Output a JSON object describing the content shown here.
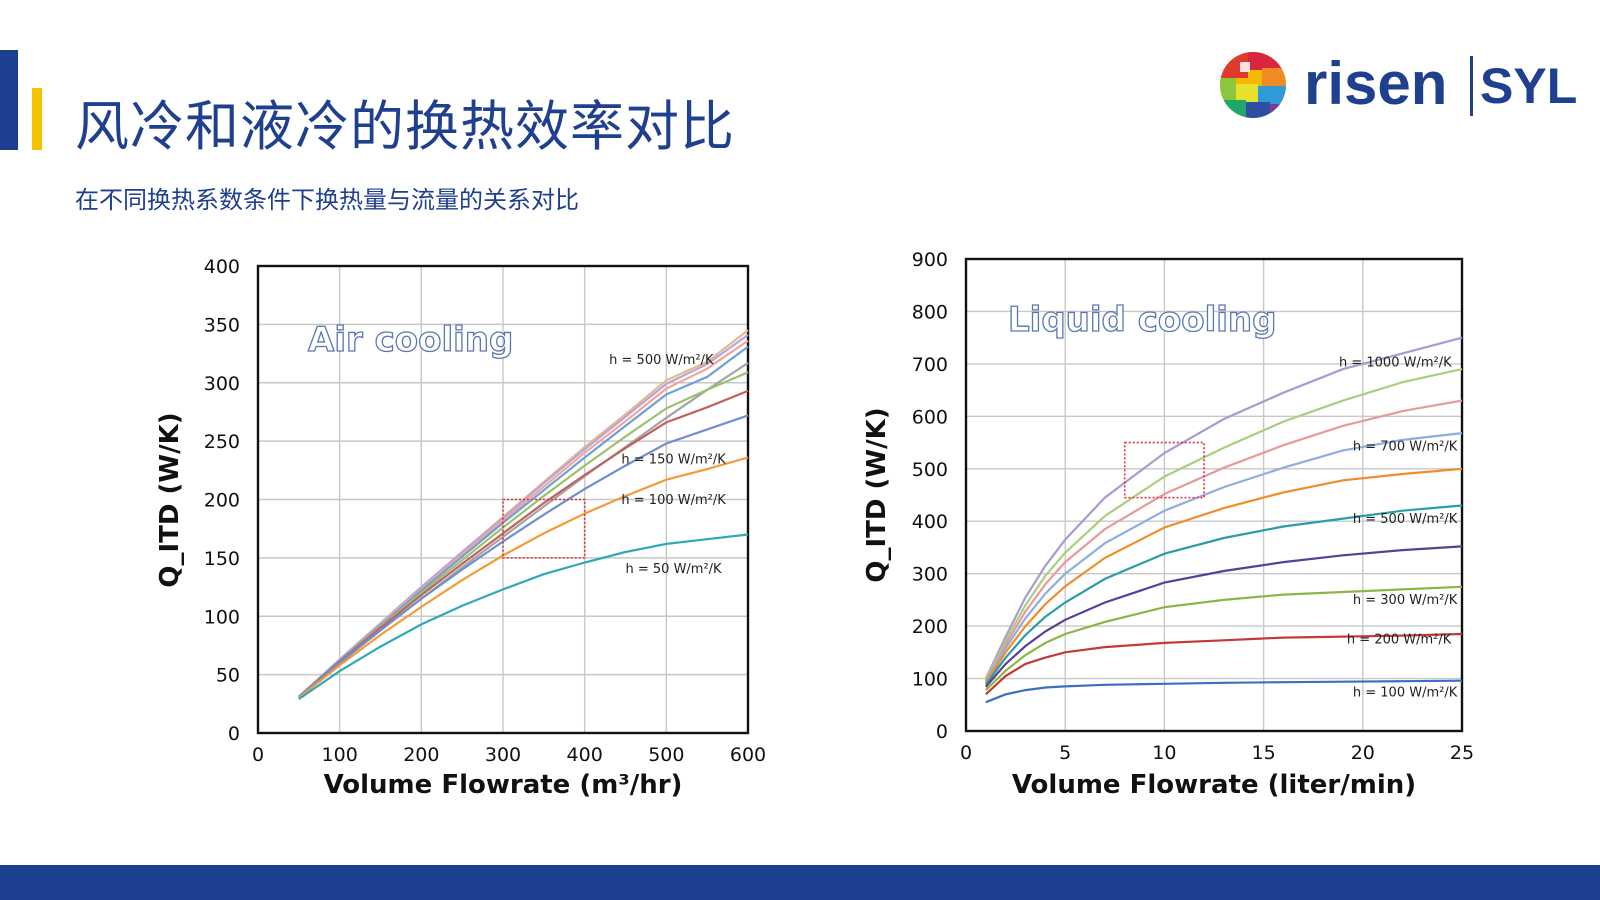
{
  "slide": {
    "title": "风冷和液冷的换热效率对比",
    "subtitle": "在不同换热系数条件下换热量与流量的关系对比"
  },
  "logo": {
    "text_left": "risen",
    "text_right": "SYL"
  },
  "colors": {
    "brand_blue": "#1d3f8f",
    "accent_yellow": "#f5c400",
    "highlight_box": "#e0303a"
  },
  "chart_data": [
    {
      "type": "line",
      "title": "Air cooling",
      "xlabel": "Volume Flowrate (m³/hr)",
      "ylabel": "Q_ITD (W/K)",
      "xlim": [
        0,
        600
      ],
      "ylim": [
        0,
        400
      ],
      "xticks": [
        "0",
        "100",
        "200",
        "300",
        "400",
        "500",
        "600"
      ],
      "yticks": [
        "0",
        "50",
        "100",
        "150",
        "200",
        "250",
        "300",
        "350",
        "400"
      ],
      "grid": true,
      "x": [
        50,
        100,
        150,
        200,
        250,
        300,
        350,
        400,
        450,
        500,
        550,
        600
      ],
      "series": [
        {
          "color": "#a5a5a5",
          "values": [
            31,
            60,
            88,
            115,
            142,
            168,
            194,
            220,
            245,
            270,
            294,
            317
          ]
        },
        {
          "color": "#e6b88f",
          "values": [
            31,
            63,
            94,
            125,
            155,
            185,
            215,
            245,
            273,
            302,
            318,
            345
          ]
        },
        {
          "color": "#b7a6d4",
          "values": [
            31,
            63,
            94,
            125,
            155,
            184,
            214,
            243,
            271,
            299,
            316,
            341
          ]
        },
        {
          "color": "#f2a59a",
          "values": [
            31,
            62,
            93,
            123,
            153,
            182,
            211,
            240,
            267,
            295,
            312,
            336
          ]
        },
        {
          "color": "#6ea0d6",
          "values": [
            31,
            62,
            92,
            122,
            151,
            180,
            208,
            236,
            263,
            290,
            305,
            331
          ]
        },
        {
          "color": "#9dc06a",
          "values": [
            31,
            61,
            91,
            120,
            148,
            176,
            203,
            229,
            254,
            278,
            294,
            309
          ]
        },
        {
          "color": "#c2615f",
          "values": [
            31,
            61,
            90,
            118,
            145,
            171,
            197,
            221,
            244,
            266,
            279,
            293
          ]
        },
        {
          "color": "#6f8fd0",
          "values": [
            31,
            60,
            88,
            115,
            140,
            164,
            187,
            209,
            229,
            248,
            260,
            272
          ]
        },
        {
          "color": "#f39a3a",
          "values": [
            30,
            58,
            84,
            108,
            131,
            152,
            171,
            188,
            203,
            217,
            226,
            236
          ]
        },
        {
          "color": "#2eaab6",
          "values": [
            29,
            53,
            74,
            93,
            109,
            123,
            136,
            146,
            155,
            162,
            166,
            170
          ]
        }
      ],
      "annotations": [
        {
          "text": "h = 500 W/m²/K",
          "x": 430,
          "y": 316
        },
        {
          "text": "h = 150 W/m²/K",
          "x": 445,
          "y": 231
        },
        {
          "text": "h = 100 W/m²/K",
          "x": 445,
          "y": 196
        },
        {
          "text": "h = 50 W/m²/K",
          "x": 450,
          "y": 137
        }
      ],
      "highlight": {
        "x": [
          300,
          400
        ],
        "y": [
          150,
          200
        ]
      }
    },
    {
      "type": "line",
      "title": "Liquid cooling",
      "xlabel": "Volume Flowrate (liter/min)",
      "ylabel": "Q_ITD (W/K)",
      "xlim": [
        0,
        25
      ],
      "ylim": [
        0,
        900
      ],
      "xticks": [
        "0",
        "5",
        "10",
        "15",
        "20",
        "25"
      ],
      "yticks": [
        "0",
        "100",
        "200",
        "300",
        "400",
        "500",
        "600",
        "700",
        "800",
        "900"
      ],
      "grid": true,
      "x": [
        1,
        2,
        3,
        4,
        5,
        7,
        10,
        13,
        16,
        19,
        22,
        25
      ],
      "series": [
        {
          "color": "#a99bd1",
          "values": [
            100,
            180,
            255,
            315,
            365,
            445,
            530,
            595,
            645,
            690,
            720,
            750
          ]
        },
        {
          "color": "#a9cf7e",
          "values": [
            98,
            172,
            240,
            296,
            340,
            410,
            485,
            540,
            590,
            630,
            665,
            690
          ]
        },
        {
          "color": "#e79a9a",
          "values": [
            96,
            165,
            228,
            280,
            322,
            385,
            452,
            502,
            545,
            582,
            610,
            630
          ]
        },
        {
          "color": "#8eaee0",
          "values": [
            94,
            158,
            215,
            262,
            300,
            358,
            420,
            465,
            502,
            535,
            555,
            568
          ]
        },
        {
          "color": "#f28c28",
          "values": [
            92,
            150,
            200,
            242,
            276,
            330,
            388,
            425,
            455,
            478,
            490,
            500
          ]
        },
        {
          "color": "#2a9da8",
          "values": [
            88,
            140,
            183,
            218,
            245,
            290,
            338,
            368,
            390,
            405,
            420,
            430
          ]
        },
        {
          "color": "#5a3f96",
          "values": [
            84,
            128,
            162,
            190,
            212,
            245,
            283,
            305,
            322,
            335,
            345,
            352
          ]
        },
        {
          "color": "#8db544",
          "values": [
            78,
            115,
            145,
            168,
            185,
            208,
            236,
            250,
            260,
            265,
            270,
            275
          ]
        },
        {
          "color": "#c33a3a",
          "values": [
            70,
            105,
            128,
            140,
            150,
            160,
            168,
            173,
            178,
            180,
            182,
            185
          ]
        },
        {
          "color": "#3c6fbf",
          "values": [
            55,
            70,
            78,
            83,
            85,
            88,
            90,
            92,
            93,
            94,
            95,
            96
          ]
        }
      ],
      "annotations": [
        {
          "text": "h = 1000 W/m²/K",
          "x": 18.8,
          "y": 695
        },
        {
          "text": "h = 700 W/m²/K",
          "x": 19.5,
          "y": 535
        },
        {
          "text": "h = 500 W/m²/K",
          "x": 19.5,
          "y": 397
        },
        {
          "text": "h = 300 W/m²/K",
          "x": 19.5,
          "y": 242
        },
        {
          "text": "h = 200 W/m²/K",
          "x": 19.2,
          "y": 167
        },
        {
          "text": "h = 100 W/m²/K",
          "x": 19.5,
          "y": 66
        }
      ],
      "highlight": {
        "x": [
          8,
          12
        ],
        "y": [
          445,
          550
        ]
      }
    }
  ]
}
